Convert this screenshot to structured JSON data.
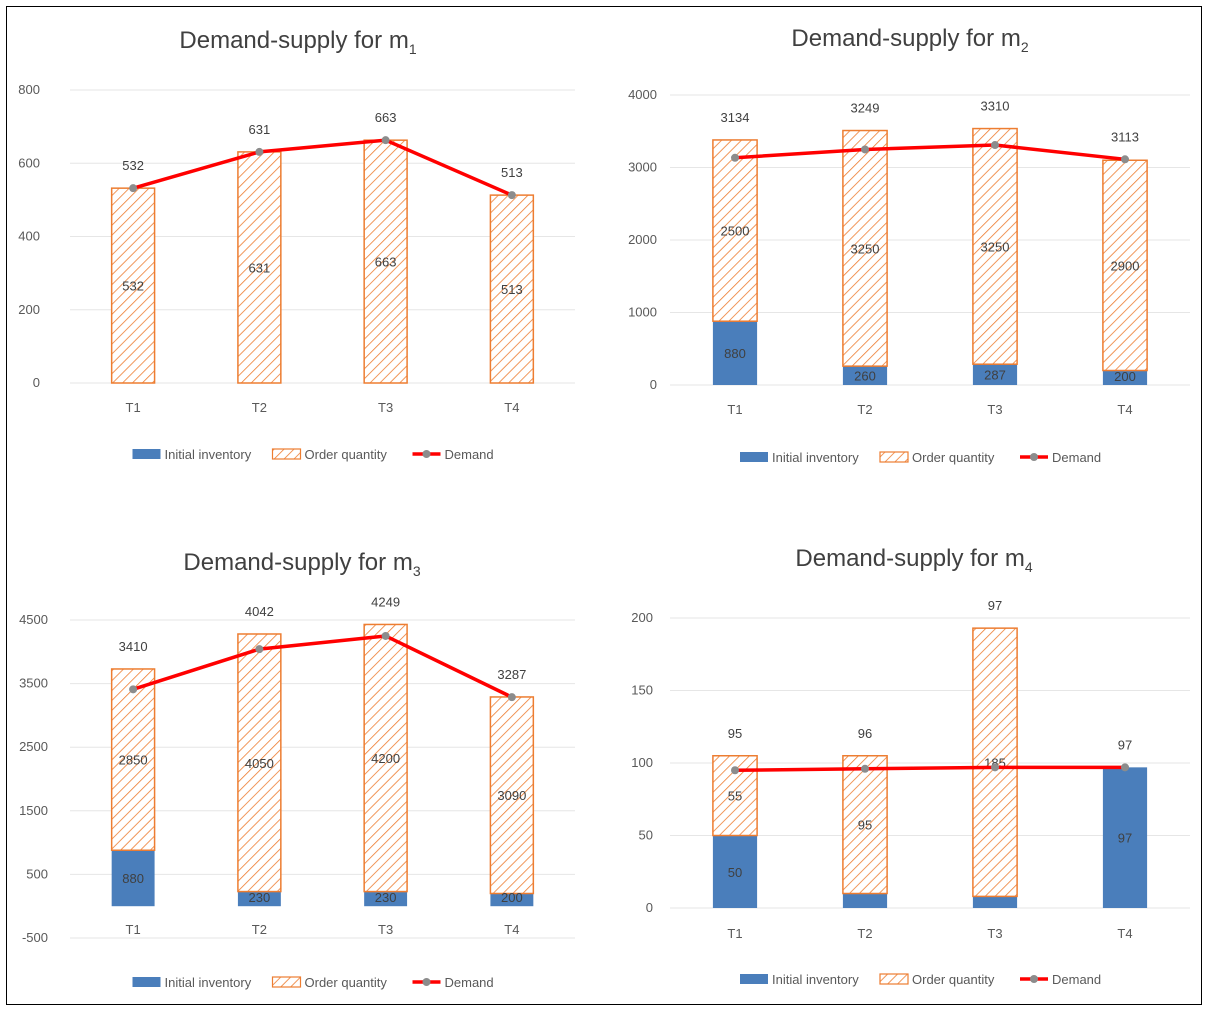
{
  "colors": {
    "inventory": "#4a7ebb",
    "order_stroke": "#ed7d31",
    "demand": "#ff0000",
    "marker": "#8c8c8c",
    "grid": "#e6e6e6"
  },
  "chart_data": [
    {
      "type": "bar",
      "stacked": true,
      "title": "Demand-supply for m",
      "title_sub": "1",
      "categories": [
        "T1",
        "T2",
        "T3",
        "T4"
      ],
      "ylim": [
        0,
        800
      ],
      "yticks": [
        0,
        200,
        400,
        600,
        800
      ],
      "grid": true,
      "legend_position": "bottom",
      "series": [
        {
          "name": "Initial inventory",
          "kind": "bar",
          "values": [
            0,
            0,
            0,
            0
          ],
          "labels": [
            "",
            "",
            "",
            ""
          ]
        },
        {
          "name": "Order quantity",
          "kind": "bar-hatched",
          "values": [
            532,
            631,
            663,
            513
          ],
          "labels": [
            "532",
            "631",
            "663",
            "513"
          ]
        },
        {
          "name": "Demand",
          "kind": "line",
          "values": [
            532,
            631,
            663,
            513
          ],
          "labels": [
            "532",
            "631",
            "663",
            "513"
          ]
        }
      ]
    },
    {
      "type": "bar",
      "stacked": true,
      "title": "Demand-supply for m",
      "title_sub": "2",
      "categories": [
        "T1",
        "T2",
        "T3",
        "T4"
      ],
      "ylim": [
        0,
        4000
      ],
      "yticks": [
        0,
        1000,
        2000,
        3000,
        4000
      ],
      "grid": true,
      "legend_position": "bottom",
      "series": [
        {
          "name": "Initial inventory",
          "kind": "bar",
          "values": [
            880,
            260,
            287,
            200
          ],
          "labels": [
            "880",
            "260",
            "287",
            "200"
          ]
        },
        {
          "name": "Order quantity",
          "kind": "bar-hatched",
          "values": [
            2500,
            3250,
            3250,
            2900
          ],
          "labels": [
            "2500",
            "3250",
            "3250",
            "2900"
          ]
        },
        {
          "name": "Demand",
          "kind": "line",
          "values": [
            3134,
            3249,
            3310,
            3113
          ],
          "labels": [
            "3134",
            "3249",
            "3310",
            "3113"
          ]
        }
      ]
    },
    {
      "type": "bar",
      "stacked": true,
      "title": "Demand-supply for m",
      "title_sub": "3",
      "categories": [
        "T1",
        "T2",
        "T3",
        "T4"
      ],
      "ylim": [
        -500,
        4500
      ],
      "yticks": [
        -500,
        500,
        1500,
        2500,
        3500,
        4500
      ],
      "grid": true,
      "legend_position": "bottom",
      "series": [
        {
          "name": "Initial inventory",
          "kind": "bar",
          "values": [
            880,
            230,
            230,
            200
          ],
          "labels": [
            "880",
            "230",
            "230",
            "200"
          ]
        },
        {
          "name": "Order quantity",
          "kind": "bar-hatched",
          "values": [
            2850,
            4050,
            4200,
            3090
          ],
          "labels": [
            "2850",
            "4050",
            "4200",
            "3090"
          ]
        },
        {
          "name": "Demand",
          "kind": "line",
          "values": [
            3410,
            4042,
            4249,
            3287
          ],
          "labels": [
            "3410",
            "4042",
            "4249",
            "3287"
          ]
        }
      ]
    },
    {
      "type": "bar",
      "stacked": true,
      "title": "Demand-supply for m",
      "title_sub": "4",
      "categories": [
        "T1",
        "T2",
        "T3",
        "T4"
      ],
      "ylim": [
        0,
        200
      ],
      "yticks": [
        0,
        50,
        100,
        150,
        200
      ],
      "grid": true,
      "legend_position": "bottom",
      "series": [
        {
          "name": "Initial inventory",
          "kind": "bar",
          "values": [
            50,
            10,
            8,
            97
          ],
          "labels": [
            "50",
            "",
            "",
            "97"
          ]
        },
        {
          "name": "Order quantity",
          "kind": "bar-hatched",
          "values": [
            55,
            95,
            185,
            0
          ],
          "labels": [
            "55",
            "95",
            "185",
            ""
          ]
        },
        {
          "name": "Demand",
          "kind": "line",
          "values": [
            95,
            96,
            97,
            97
          ],
          "labels": [
            "95",
            "96",
            "97",
            "97"
          ]
        }
      ]
    }
  ]
}
